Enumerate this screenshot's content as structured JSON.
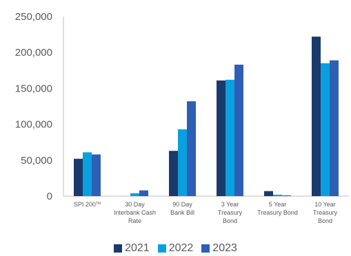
{
  "chart_data": {
    "type": "bar",
    "categories": [
      [
        "SPI 200",
        "TM"
      ],
      [
        "30 Day",
        "Interbank Cash",
        "Rate"
      ],
      [
        "90 Day",
        "Bank Bill"
      ],
      [
        "3 Year",
        "Treasury",
        "Bond"
      ],
      [
        "5 Year",
        "Treasury Bond"
      ],
      [
        "10 Year",
        "Treasury",
        "Bond"
      ]
    ],
    "series": [
      {
        "name": "2021",
        "color": "#1a3a6b",
        "values": [
          52000,
          0,
          63000,
          161000,
          7000,
          222000
        ]
      },
      {
        "name": "2022",
        "color": "#0aa0e0",
        "values": [
          61000,
          4000,
          93000,
          162000,
          2000,
          185000
        ]
      },
      {
        "name": "2023",
        "color": "#2e5fb4",
        "values": [
          58000,
          8000,
          132000,
          183000,
          1000,
          189000
        ]
      }
    ],
    "yticks": [
      "0",
      "50,000",
      "100,000",
      "150,000",
      "200,000",
      "250,000"
    ],
    "ylim": [
      0,
      250000
    ],
    "grid": false,
    "legend_position": "bottom"
  }
}
